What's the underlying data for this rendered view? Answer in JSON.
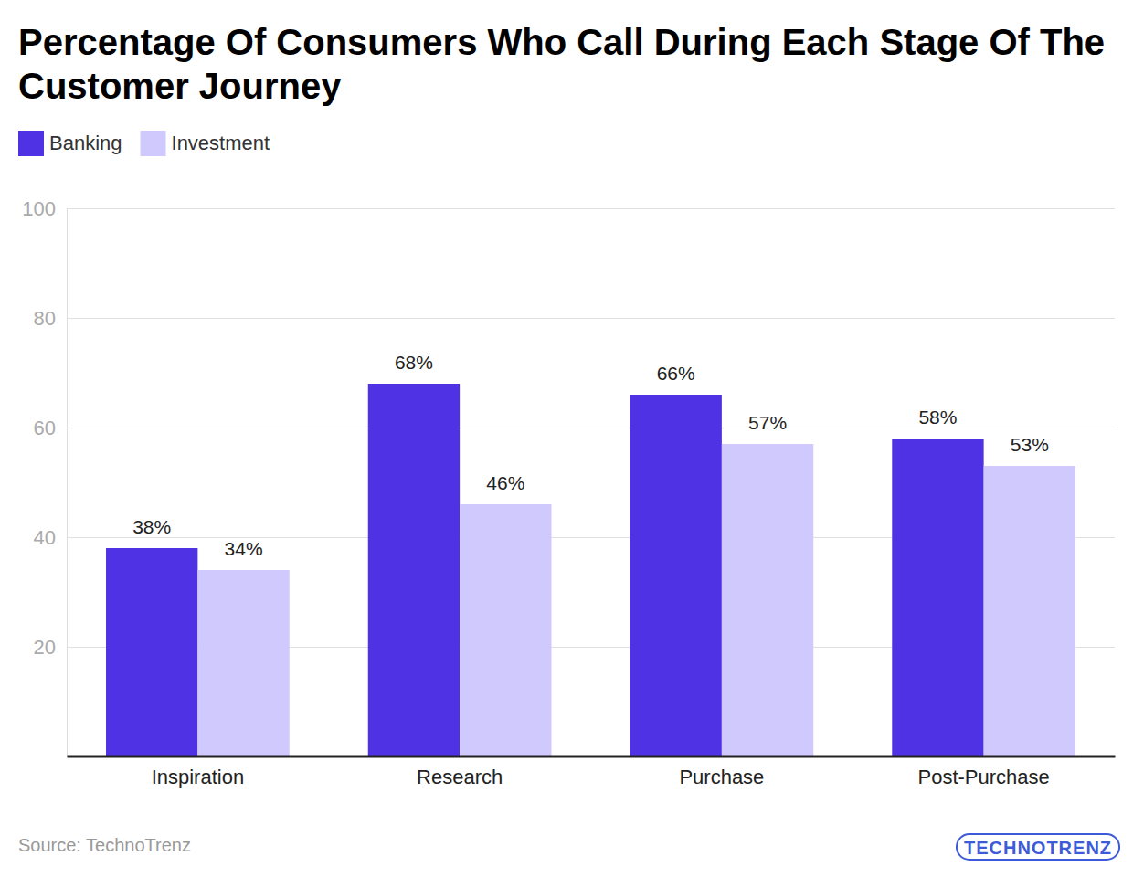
{
  "chart_data": {
    "type": "bar",
    "title": "Percentage Of Consumers Who Call During Each Stage Of The Customer Journey",
    "categories": [
      "Inspiration",
      "Research",
      "Purchase",
      "Post-Purchase"
    ],
    "series": [
      {
        "name": "Banking",
        "color": "#4f32e3",
        "values": [
          38,
          68,
          66,
          58
        ],
        "value_labels": [
          "38%",
          "68%",
          "66%",
          "58%"
        ]
      },
      {
        "name": "Investment",
        "color": "#d0c9fd",
        "values": [
          34,
          46,
          57,
          53
        ],
        "value_labels": [
          "34%",
          "46%",
          "57%",
          "53%"
        ]
      }
    ],
    "ylim": [
      0,
      100
    ],
    "yticks": [
      20,
      40,
      60,
      80,
      100
    ],
    "grid": true,
    "legend": "top-left",
    "data_labels": true,
    "source": "Source: TechnoTrenz",
    "brand": "TECHNOTRENZ"
  }
}
